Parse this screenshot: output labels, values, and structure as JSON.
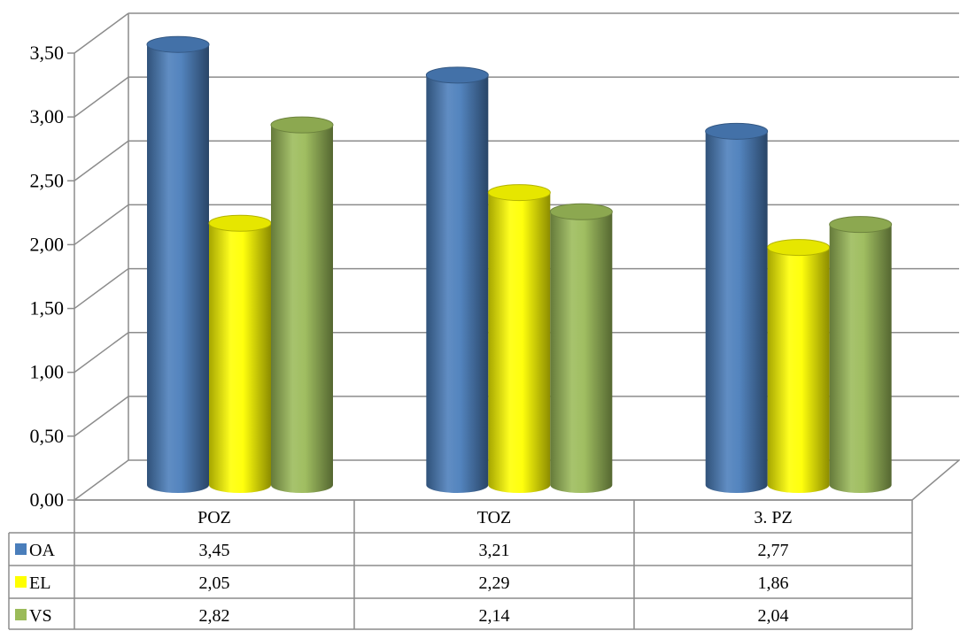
{
  "chart_data": {
    "type": "bar",
    "style": "3d-cylinder",
    "title": "",
    "xlabel": "",
    "ylabel": "",
    "categories": [
      "POZ",
      "TOZ",
      "3. PZ"
    ],
    "series": [
      {
        "name": "OA",
        "color": "#4A7EBB",
        "values": [
          3.45,
          3.21,
          2.77
        ],
        "labels": [
          "3,45",
          "3,21",
          "2,77"
        ]
      },
      {
        "name": "EL",
        "color": "#FFFF00",
        "values": [
          2.05,
          2.29,
          1.86
        ],
        "labels": [
          "2,05",
          "2,29",
          "1,86"
        ]
      },
      {
        "name": "VS",
        "color": "#9BBB59",
        "values": [
          2.82,
          2.14,
          2.04
        ],
        "labels": [
          "2,82",
          "2,14",
          "2,04"
        ]
      }
    ],
    "ylim": [
      0,
      3.5
    ],
    "yticks": [
      0,
      0.5,
      1,
      1.5,
      2,
      2.5,
      3,
      3.5
    ],
    "ytick_labels": [
      "0,00",
      "0,50",
      "1,00",
      "1,50",
      "2,00",
      "2,50",
      "3,00",
      "3,50"
    ],
    "grid": true,
    "legend": "data-table"
  }
}
